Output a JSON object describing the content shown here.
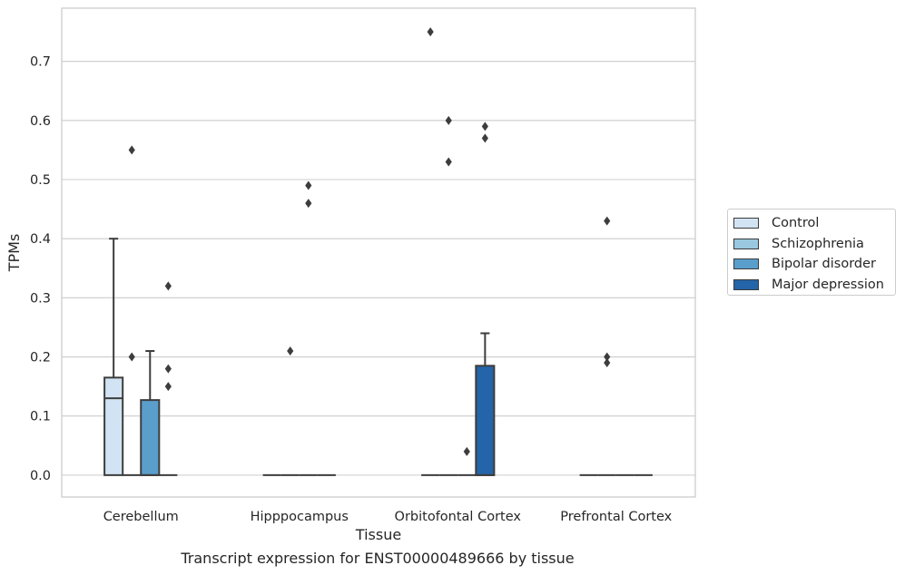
{
  "caption": "Transcript expression for ENST00000489666 by tissue",
  "legend": {
    "items": [
      {
        "label": "Control",
        "color": "#d2e3f3"
      },
      {
        "label": "Schizophrenia",
        "color": "#9ac8e0"
      },
      {
        "label": "Bipolar disorder",
        "color": "#5a9ecc"
      },
      {
        "label": "Major depression",
        "color": "#2464a8"
      }
    ]
  },
  "chart_data": {
    "type": "box",
    "xlabel": "Tissue",
    "ylabel": "TPMs",
    "ylim": [
      -0.037,
      0.79
    ],
    "yticks": [
      0.0,
      0.1,
      0.2,
      0.3,
      0.4,
      0.5,
      0.6,
      0.7
    ],
    "ytick_labels": [
      "0.0",
      "0.1",
      "0.2",
      "0.3",
      "0.4",
      "0.5",
      "0.6",
      "0.7"
    ],
    "grid": "horizontal",
    "legend_position": "right",
    "categories": [
      "Cerebellum",
      "Hipppocampus",
      "Orbitofontal Cortex",
      "Prefrontal Cortex"
    ],
    "series": [
      {
        "name": "Control",
        "color": "#d2e3f3",
        "boxes": [
          {
            "q1": 0.0,
            "median": 0.13,
            "q3": 0.165,
            "whisker_low": 0.0,
            "whisker_high": 0.4,
            "outliers": []
          },
          {
            "q1": 0.0,
            "median": 0.0,
            "q3": 0.0,
            "whisker_low": 0.0,
            "whisker_high": 0.0,
            "outliers": []
          },
          {
            "q1": 0.0,
            "median": 0.0,
            "q3": 0.0,
            "whisker_low": 0.0,
            "whisker_high": 0.0,
            "outliers": [
              0.75
            ]
          },
          {
            "q1": 0.0,
            "median": 0.0,
            "q3": 0.0,
            "whisker_low": 0.0,
            "whisker_high": 0.0,
            "outliers": []
          }
        ]
      },
      {
        "name": "Schizophrenia",
        "color": "#9ac8e0",
        "boxes": [
          {
            "q1": 0.0,
            "median": 0.0,
            "q3": 0.0,
            "whisker_low": 0.0,
            "whisker_high": 0.0,
            "outliers": [
              0.55,
              0.2
            ]
          },
          {
            "q1": 0.0,
            "median": 0.0,
            "q3": 0.0,
            "whisker_low": 0.0,
            "whisker_high": 0.0,
            "outliers": [
              0.21
            ]
          },
          {
            "q1": 0.0,
            "median": 0.0,
            "q3": 0.0,
            "whisker_low": 0.0,
            "whisker_high": 0.0,
            "outliers": [
              0.6,
              0.53
            ]
          },
          {
            "q1": 0.0,
            "median": 0.0,
            "q3": 0.0,
            "whisker_low": 0.0,
            "whisker_high": 0.0,
            "outliers": [
              0.43,
              0.2,
              0.19
            ]
          }
        ]
      },
      {
        "name": "Bipolar disorder",
        "color": "#5a9ecc",
        "boxes": [
          {
            "q1": 0.0,
            "median": 0.0,
            "q3": 0.127,
            "whisker_low": 0.0,
            "whisker_high": 0.21,
            "outliers": []
          },
          {
            "q1": 0.0,
            "median": 0.0,
            "q3": 0.0,
            "whisker_low": 0.0,
            "whisker_high": 0.0,
            "outliers": [
              0.49,
              0.46
            ]
          },
          {
            "q1": 0.0,
            "median": 0.0,
            "q3": 0.0,
            "whisker_low": 0.0,
            "whisker_high": 0.0,
            "outliers": [
              0.04
            ]
          },
          {
            "q1": 0.0,
            "median": 0.0,
            "q3": 0.0,
            "whisker_low": 0.0,
            "whisker_high": 0.0,
            "outliers": []
          }
        ]
      },
      {
        "name": "Major depression",
        "color": "#2464a8",
        "boxes": [
          {
            "q1": 0.0,
            "median": 0.0,
            "q3": 0.0,
            "whisker_low": 0.0,
            "whisker_high": 0.0,
            "outliers": [
              0.32,
              0.18,
              0.15
            ]
          },
          {
            "q1": 0.0,
            "median": 0.0,
            "q3": 0.0,
            "whisker_low": 0.0,
            "whisker_high": 0.0,
            "outliers": []
          },
          {
            "q1": 0.0,
            "median": 0.0,
            "q3": 0.185,
            "whisker_low": 0.0,
            "whisker_high": 0.24,
            "outliers": [
              0.59,
              0.57
            ]
          },
          {
            "q1": 0.0,
            "median": 0.0,
            "q3": 0.0,
            "whisker_low": 0.0,
            "whisker_high": 0.0,
            "outliers": []
          }
        ]
      }
    ]
  }
}
